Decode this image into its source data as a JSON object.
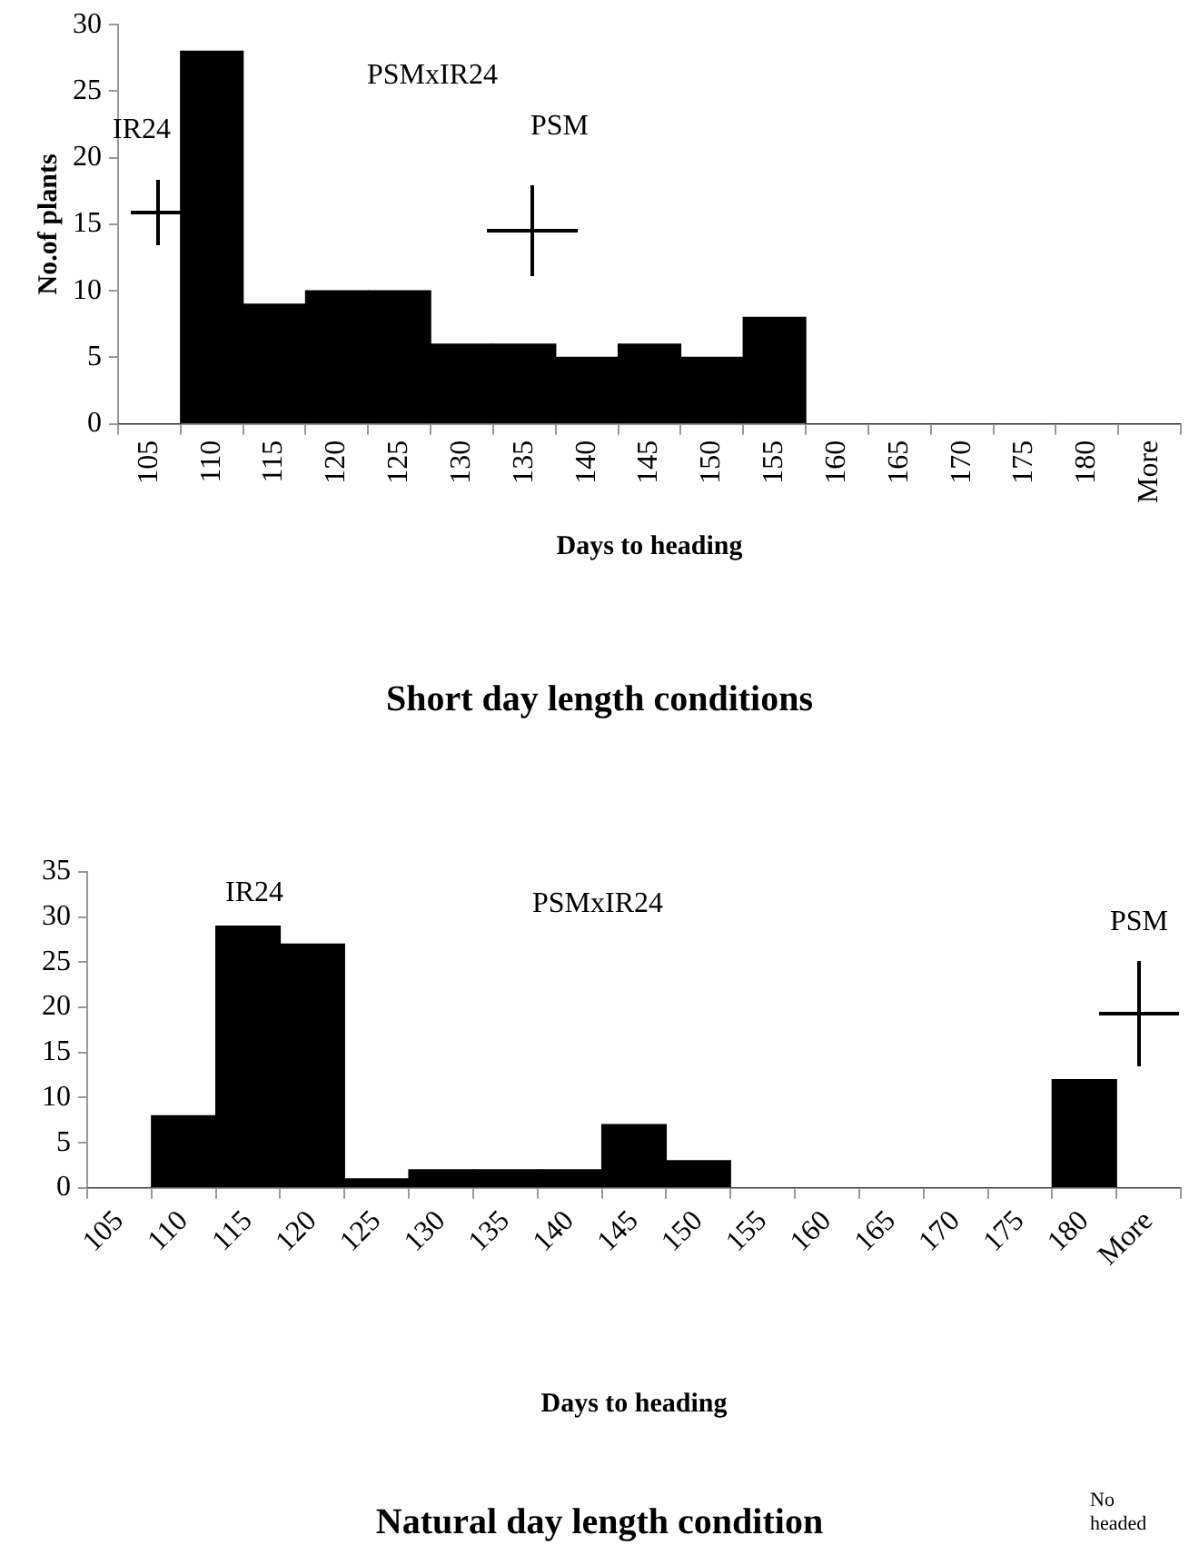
{
  "chart_data": [
    {
      "type": "bar",
      "title": "Short day length conditions",
      "xlabel": "Days to heading",
      "ylabel": "No.of plants",
      "categories": [
        "105",
        "110",
        "115",
        "120",
        "125",
        "130",
        "135",
        "140",
        "145",
        "150",
        "155",
        "160",
        "165",
        "170",
        "175",
        "180",
        "More"
      ],
      "values": [
        0,
        28,
        9,
        10,
        10,
        6,
        6,
        5,
        6,
        5,
        8,
        0,
        0,
        0,
        0,
        0,
        0
      ],
      "color": "#000000",
      "ylim": [
        0,
        30
      ],
      "yticks": [
        0,
        5,
        10,
        15,
        20,
        25,
        30
      ],
      "grid": false,
      "legend": false,
      "annotations": [
        "IR24",
        "PSMxIR24",
        "PSM"
      ]
    },
    {
      "type": "bar",
      "title": "Natural day length condition",
      "xlabel": "Days to heading",
      "categories": [
        "105",
        "110",
        "115",
        "120",
        "125",
        "130",
        "135",
        "140",
        "145",
        "150",
        "155",
        "160",
        "165",
        "170",
        "175",
        "180",
        "More"
      ],
      "values": [
        0,
        8,
        29,
        27,
        1,
        2,
        2,
        2,
        7,
        3,
        0,
        0,
        0,
        0,
        0,
        12,
        0
      ],
      "color": "#000000",
      "ylim": [
        0,
        35
      ],
      "yticks": [
        0,
        5,
        10,
        15,
        20,
        25,
        30,
        35
      ],
      "grid": false,
      "legend": false,
      "annotations": [
        "IR24",
        "PSMxIR24",
        "PSM",
        "No headed"
      ]
    }
  ]
}
